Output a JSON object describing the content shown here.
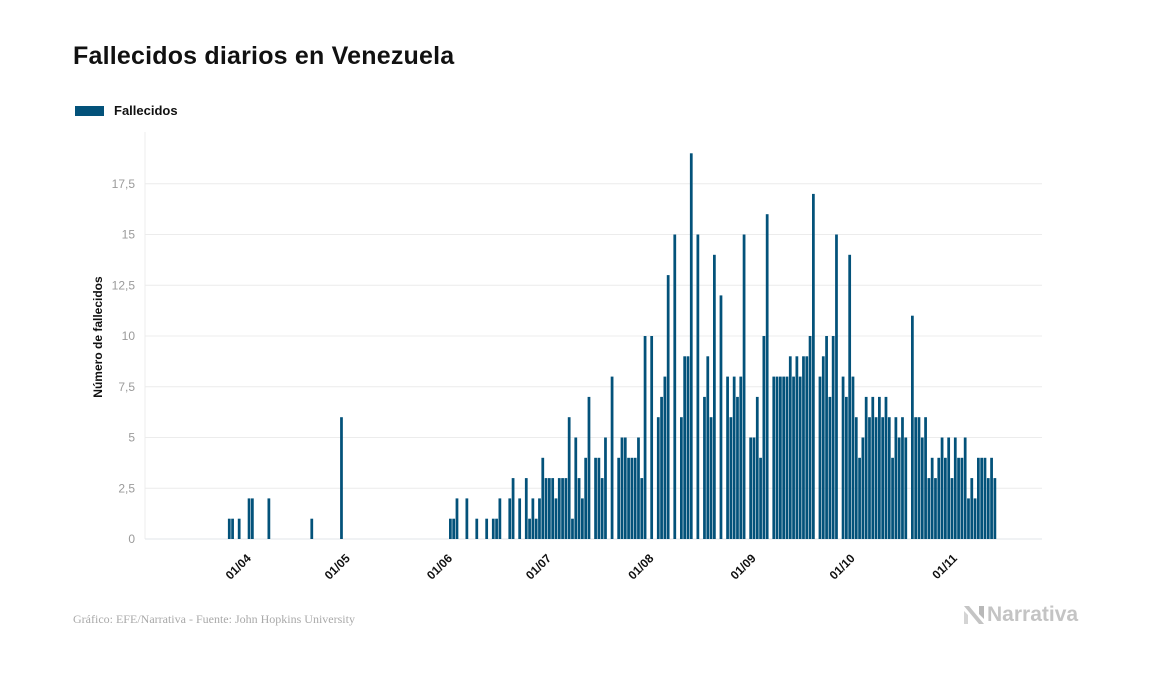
{
  "header": {
    "title": "Fallecidos diarios en Venezuela"
  },
  "legend": {
    "label": "Fallecidos",
    "color": "#03527a"
  },
  "footer": {
    "source": "Gráfico: EFE/Narrativa - Fuente: John Hopkins University",
    "brand": "Narrativa",
    "brand_icon": "narrativa-n-logo-icon"
  },
  "chart_data": {
    "type": "bar",
    "title": "Fallecidos diarios en Venezuela",
    "xlabel": "",
    "ylabel": "Número de fallecidos",
    "ylim": [
      0,
      20
    ],
    "grid": true,
    "legend_position": "top-left",
    "series": [
      {
        "name": "Fallecidos",
        "color": "#03527a"
      }
    ],
    "start_date": "13/03",
    "y_ticks": [
      {
        "value": 0,
        "label": "0"
      },
      {
        "value": 2.5,
        "label": "2,5"
      },
      {
        "value": 5,
        "label": "5"
      },
      {
        "value": 7.5,
        "label": "7,5"
      },
      {
        "value": 10,
        "label": "10"
      },
      {
        "value": 12.5,
        "label": "12,5"
      },
      {
        "value": 15,
        "label": "15"
      },
      {
        "value": 17.5,
        "label": "17,5"
      }
    ],
    "x_ticks": [
      {
        "day": 19,
        "label": "01/04"
      },
      {
        "day": 49,
        "label": "01/05"
      },
      {
        "day": 80,
        "label": "01/06"
      },
      {
        "day": 110,
        "label": "01/07"
      },
      {
        "day": 141,
        "label": "01/08"
      },
      {
        "day": 172,
        "label": "01/09"
      },
      {
        "day": 202,
        "label": "01/10"
      },
      {
        "day": 233,
        "label": "01/11"
      }
    ],
    "values": [
      0,
      0,
      0,
      0,
      0,
      0,
      0,
      0,
      0,
      0,
      0,
      0,
      0,
      1,
      1,
      0,
      1,
      0,
      0,
      2,
      2,
      0,
      0,
      0,
      0,
      2,
      0,
      0,
      0,
      0,
      0,
      0,
      0,
      0,
      0,
      0,
      0,
      0,
      1,
      0,
      0,
      0,
      0,
      0,
      0,
      0,
      0,
      6,
      0,
      0,
      0,
      0,
      0,
      0,
      0,
      0,
      0,
      0,
      0,
      0,
      0,
      0,
      0,
      0,
      0,
      0,
      0,
      0,
      0,
      0,
      0,
      0,
      0,
      0,
      0,
      0,
      0,
      0,
      0,
      0,
      1,
      1,
      2,
      0,
      0,
      2,
      0,
      0,
      1,
      0,
      0,
      1,
      0,
      1,
      1,
      2,
      0,
      0,
      2,
      3,
      0,
      2,
      0,
      3,
      1,
      2,
      1,
      2,
      4,
      3,
      3,
      3,
      2,
      3,
      3,
      3,
      6,
      1,
      5,
      3,
      2,
      4,
      7,
      0,
      4,
      4,
      3,
      5,
      0,
      8,
      0,
      4,
      5,
      5,
      4,
      4,
      4,
      5,
      3,
      10,
      0,
      10,
      0,
      6,
      7,
      8,
      13,
      0,
      15,
      0,
      6,
      9,
      9,
      19,
      0,
      15,
      0,
      7,
      9,
      6,
      14,
      0,
      12,
      0,
      8,
      6,
      8,
      7,
      8,
      15,
      0,
      5,
      5,
      7,
      4,
      10,
      16,
      0,
      8,
      8,
      8,
      8,
      8,
      9,
      8,
      9,
      8,
      9,
      9,
      10,
      17,
      0,
      8,
      9,
      10,
      7,
      10,
      15,
      0,
      8,
      7,
      14,
      8,
      6,
      4,
      5,
      7,
      6,
      7,
      6,
      7,
      6,
      7,
      6,
      4,
      6,
      5,
      6,
      5,
      0,
      11,
      6,
      6,
      5,
      6,
      3,
      4,
      3,
      4,
      5,
      4,
      5,
      3,
      5,
      4,
      4,
      5,
      2,
      3,
      2,
      4,
      4,
      4,
      3,
      4,
      3
    ]
  }
}
